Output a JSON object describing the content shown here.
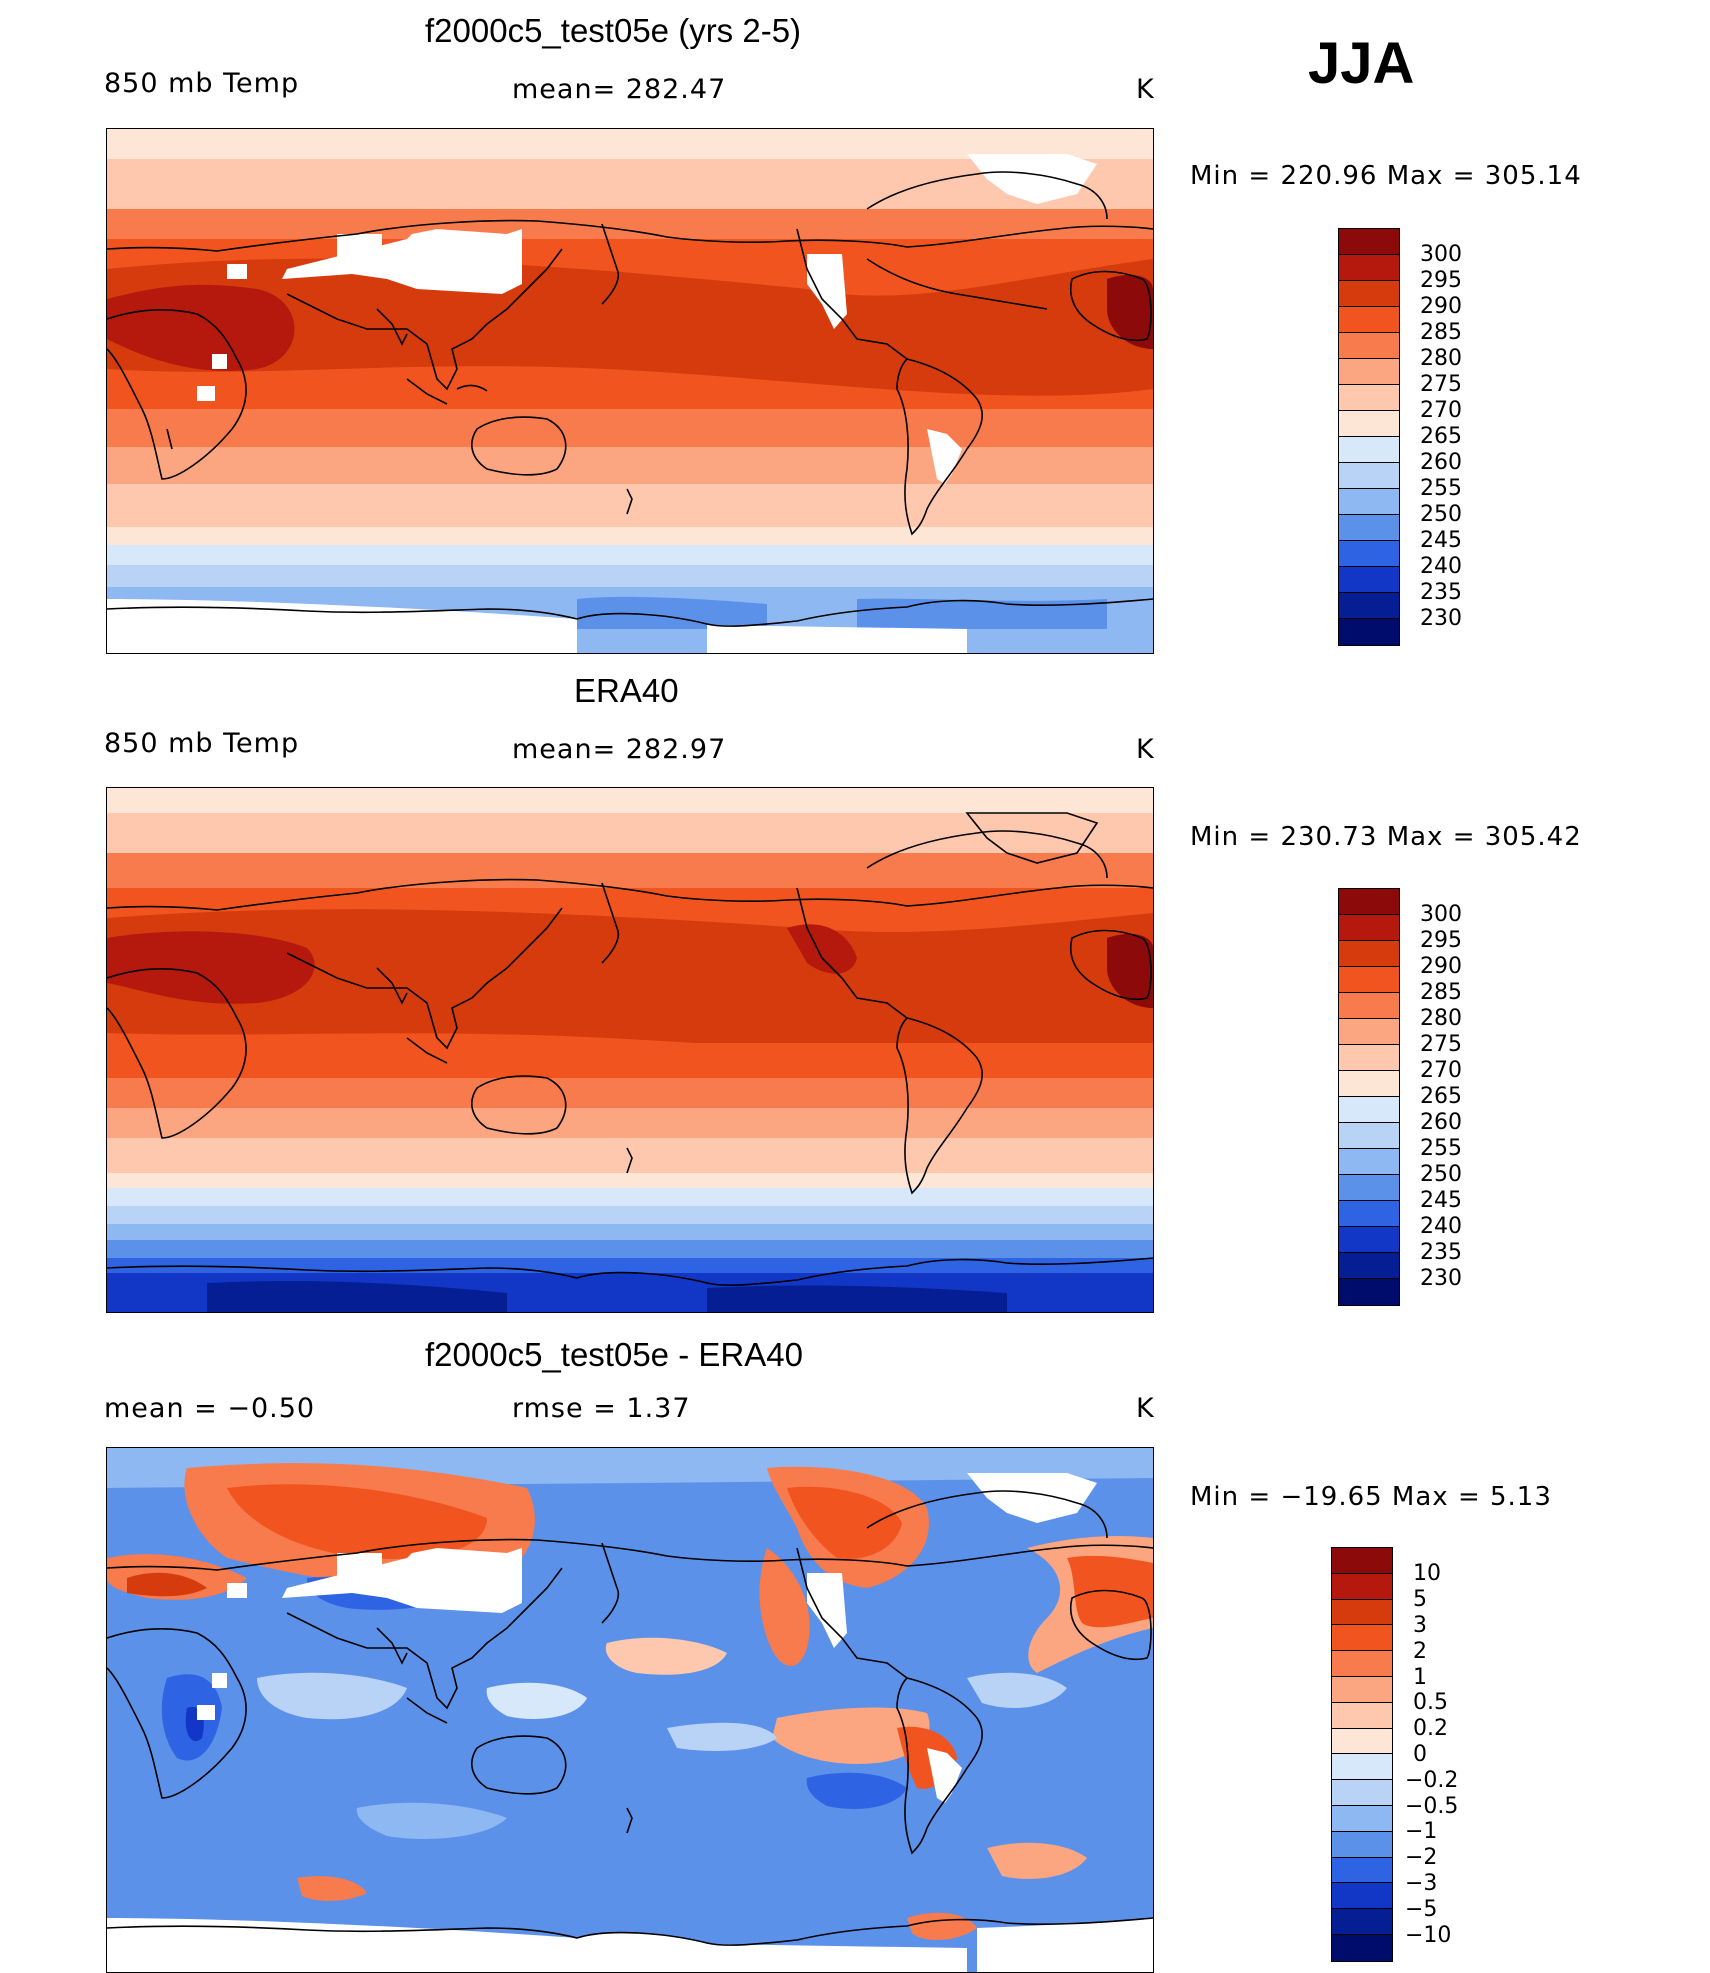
{
  "season": "JJA",
  "panels": [
    {
      "title": "f2000c5_test05e (yrs 2-5)",
      "left_label": "850 mb Temp",
      "center_label": "mean= 282.47",
      "units": "K",
      "minmax": "Min = 220.96 Max = 305.14",
      "colorbar_ticks": [
        "300",
        "295",
        "290",
        "285",
        "280",
        "275",
        "270",
        "265",
        "260",
        "255",
        "250",
        "245",
        "240",
        "235",
        "230"
      ]
    },
    {
      "title": "ERA40",
      "left_label": "850 mb Temp",
      "center_label": "mean= 282.97",
      "units": "K",
      "minmax": "Min = 230.73 Max = 305.42",
      "colorbar_ticks": [
        "300",
        "295",
        "290",
        "285",
        "280",
        "275",
        "270",
        "265",
        "260",
        "255",
        "250",
        "245",
        "240",
        "235",
        "230"
      ]
    },
    {
      "title": "f2000c5_test05e - ERA40",
      "left_label": "mean =  −0.50",
      "center_label": "rmse =    1.37",
      "units": "K",
      "minmax": "Min = −19.65 Max =    5.13",
      "colorbar_ticks": [
        "10",
        "5",
        "3",
        "2",
        "1",
        "0.5",
        "0.2",
        "0",
        "−0.2",
        "−0.5",
        "−1",
        "−2",
        "−3",
        "−5",
        "−10"
      ]
    }
  ],
  "colors": {
    "abs_scale": [
      "#8c0a0a",
      "#b5190d",
      "#d63b0e",
      "#f2541f",
      "#f77b4d",
      "#fba581",
      "#fdc8ad",
      "#fde6d6",
      "#d8e8fb",
      "#b8d3f6",
      "#8db8f1",
      "#5c91ea",
      "#2e63e3",
      "#1237c7",
      "#061e93",
      "#000c6b"
    ],
    "diff_scale": [
      "#8c0a0a",
      "#b5190d",
      "#d63b0e",
      "#f2541f",
      "#f77b4d",
      "#fba581",
      "#fdc8ad",
      "#fde6d6",
      "#d8e8fb",
      "#b8d3f6",
      "#8db8f1",
      "#5c91ea",
      "#2e63e3",
      "#1237c7",
      "#061e93",
      "#000c6b"
    ],
    "land_outline": "#000000",
    "missing": "#ffffff"
  }
}
